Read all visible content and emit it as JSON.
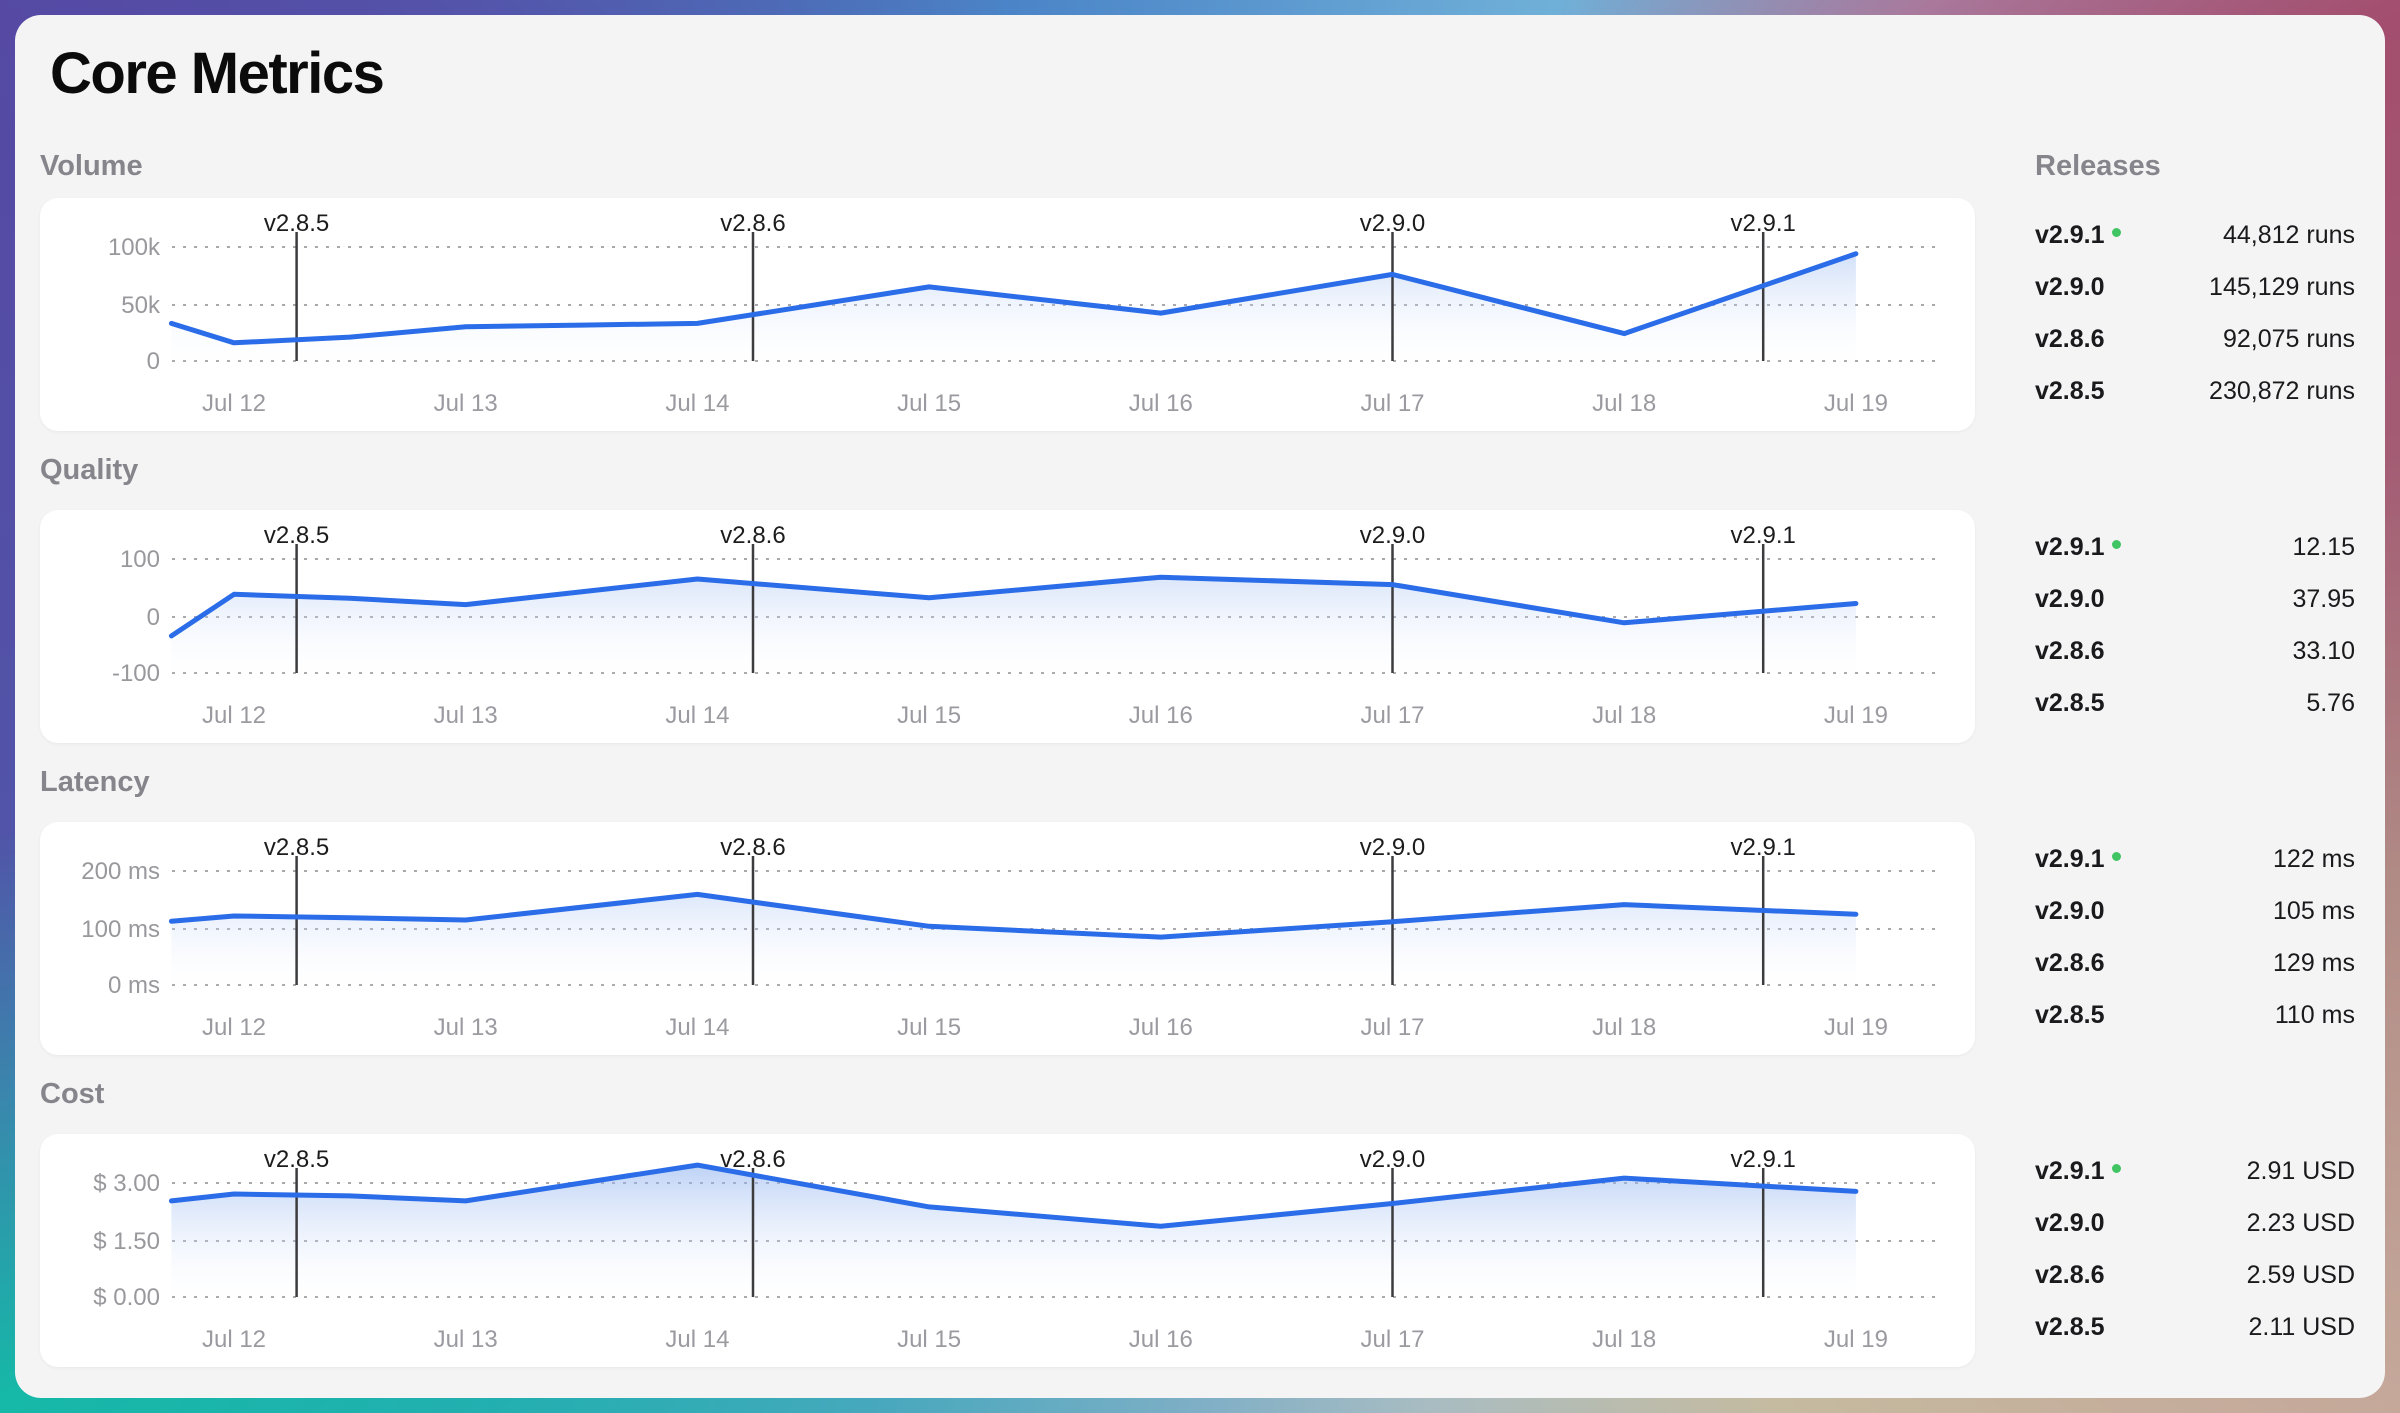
{
  "page": {
    "title": "Core Metrics"
  },
  "releases_panel": {
    "header": "Releases"
  },
  "colors": {
    "line": "#2b6ce8",
    "area_top": "#86acee",
    "grid": "#a8a8ad",
    "axis_text": "#98989d",
    "marker_line": "#3c3c3e",
    "marker_text": "#1c1c1e",
    "current_dot": "#41c463",
    "section_label": "#85858b",
    "card_bg": "#ffffff",
    "page_bg": "#f4f4f5"
  },
  "x_axis": {
    "tick_labels": [
      "Jul 12",
      "Jul 13",
      "Jul 14",
      "Jul 15",
      "Jul 16",
      "Jul 17",
      "Jul 18",
      "Jul 19"
    ],
    "tick_days": [
      12,
      13,
      14,
      15,
      16,
      17,
      18,
      19
    ]
  },
  "releases": [
    {
      "version": "v2.9.1",
      "day": 18.6,
      "current": true
    },
    {
      "version": "v2.9.0",
      "day": 17.0,
      "current": false
    },
    {
      "version": "v2.8.6",
      "day": 14.24,
      "current": false
    },
    {
      "version": "v2.8.5",
      "day": 12.27,
      "current": false
    }
  ],
  "chart_data": [
    {
      "id": "volume",
      "type": "area",
      "title": "Volume",
      "unit": "runs",
      "y_ticks": [
        {
          "label": "100k",
          "value": 100000
        },
        {
          "label": "50k",
          "value": 50000
        },
        {
          "label": "0",
          "value": 0
        }
      ],
      "points": [
        [
          11.73,
          33000
        ],
        [
          12,
          16000
        ],
        [
          12.5,
          21000
        ],
        [
          13,
          30000
        ],
        [
          13.5,
          31500
        ],
        [
          14,
          33000
        ],
        [
          15,
          65000
        ],
        [
          16,
          42000
        ],
        [
          17,
          76000
        ],
        [
          18,
          24000
        ],
        [
          19,
          94000
        ]
      ],
      "release_values": [
        {
          "version": "v2.9.1",
          "current": true,
          "value": "44,812 runs"
        },
        {
          "version": "v2.9.0",
          "current": false,
          "value": "145,129 runs"
        },
        {
          "version": "v2.8.6",
          "current": false,
          "value": "92,075 runs"
        },
        {
          "version": "v2.8.5",
          "current": false,
          "value": "230,872 runs"
        }
      ]
    },
    {
      "id": "quality",
      "type": "area",
      "title": "Quality",
      "unit": "",
      "y_ticks": [
        {
          "label": "100",
          "value": 100
        },
        {
          "label": "0",
          "value": 0
        },
        {
          "label": "-100",
          "value": -100
        }
      ],
      "points": [
        [
          11.73,
          -35
        ],
        [
          12,
          38
        ],
        [
          12.5,
          31
        ],
        [
          13,
          20
        ],
        [
          14,
          65
        ],
        [
          15,
          32
        ],
        [
          16,
          68
        ],
        [
          17,
          55
        ],
        [
          18,
          -12
        ],
        [
          19,
          22
        ]
      ],
      "release_values": [
        {
          "version": "v2.9.1",
          "current": true,
          "value": "12.15"
        },
        {
          "version": "v2.9.0",
          "current": false,
          "value": "37.95"
        },
        {
          "version": "v2.8.6",
          "current": false,
          "value": "33.10"
        },
        {
          "version": "v2.8.5",
          "current": false,
          "value": "5.76"
        }
      ]
    },
    {
      "id": "latency",
      "type": "area",
      "title": "Latency",
      "unit": "ms",
      "y_ticks": [
        {
          "label": "200 ms",
          "value": 200
        },
        {
          "label": "100 ms",
          "value": 100
        },
        {
          "label": "0 ms",
          "value": 0
        }
      ],
      "points": [
        [
          11.73,
          112
        ],
        [
          12,
          121
        ],
        [
          12.5,
          118
        ],
        [
          13,
          114
        ],
        [
          14,
          159
        ],
        [
          15,
          103
        ],
        [
          16,
          84
        ],
        [
          17,
          111
        ],
        [
          18,
          141
        ],
        [
          19,
          124
        ]
      ],
      "release_values": [
        {
          "version": "v2.9.1",
          "current": true,
          "value": "122 ms"
        },
        {
          "version": "v2.9.0",
          "current": false,
          "value": "105 ms"
        },
        {
          "version": "v2.8.6",
          "current": false,
          "value": "129 ms"
        },
        {
          "version": "v2.8.5",
          "current": false,
          "value": "110 ms"
        }
      ]
    },
    {
      "id": "cost",
      "type": "area",
      "title": "Cost",
      "unit": "USD",
      "y_ticks": [
        {
          "label": "$ 3.00",
          "value": 3.0
        },
        {
          "label": "$ 1.50",
          "value": 1.5
        },
        {
          "label": "$ 0.00",
          "value": 0.0
        }
      ],
      "points": [
        [
          11.73,
          2.53
        ],
        [
          12,
          2.71
        ],
        [
          12.5,
          2.66
        ],
        [
          13,
          2.53
        ],
        [
          14,
          3.47
        ],
        [
          15,
          2.37
        ],
        [
          16,
          1.86
        ],
        [
          17,
          2.46
        ],
        [
          18,
          3.13
        ],
        [
          19,
          2.78
        ]
      ],
      "release_values": [
        {
          "version": "v2.9.1",
          "current": true,
          "value": "2.91 USD"
        },
        {
          "version": "v2.9.0",
          "current": false,
          "value": "2.23 USD"
        },
        {
          "version": "v2.8.6",
          "current": false,
          "value": "2.59 USD"
        },
        {
          "version": "v2.8.5",
          "current": false,
          "value": "2.11 USD"
        }
      ]
    }
  ]
}
